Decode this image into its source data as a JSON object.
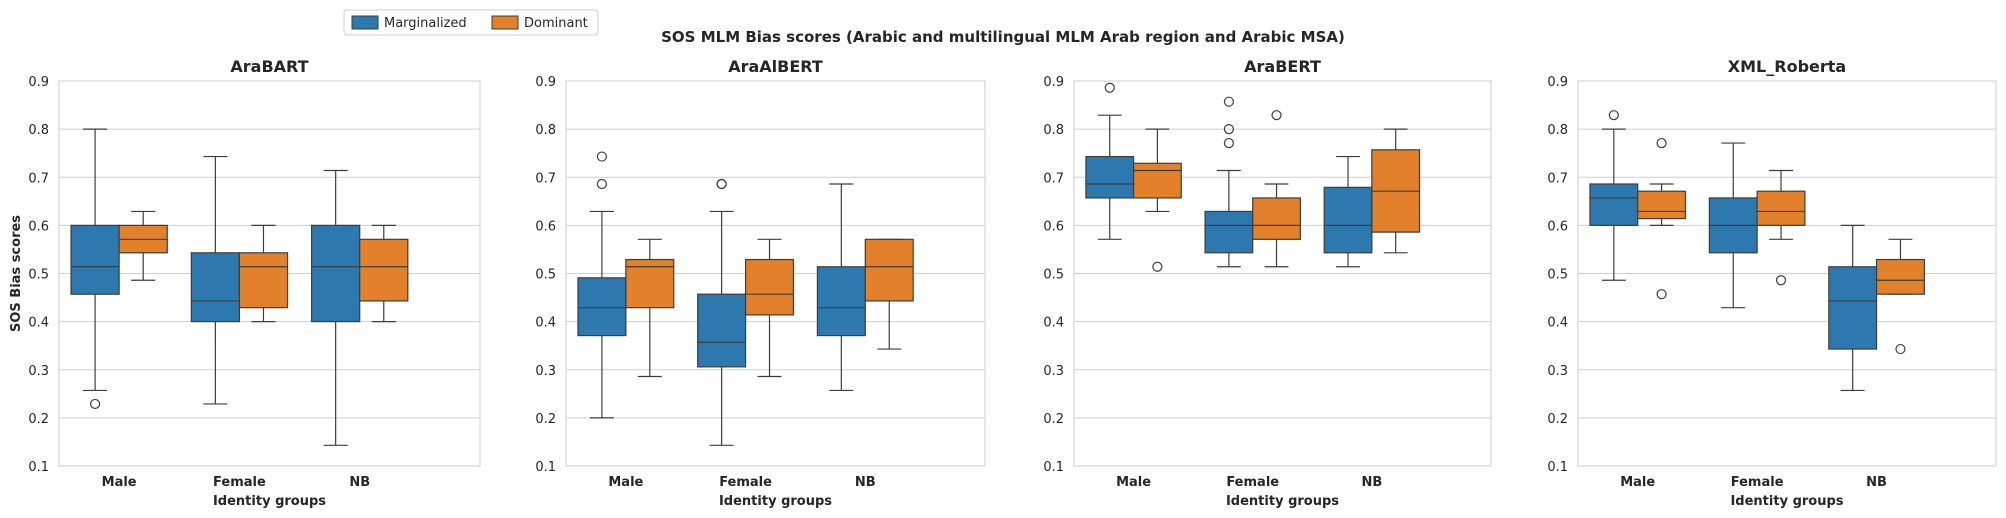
{
  "figure": {
    "suptitle": "SOS MLM Bias scores (Arabic and multilingual MLM Arab region and Arabic MSA)",
    "legend": {
      "placement": "top-left",
      "entries": [
        {
          "label": "Marginalized",
          "color": "#2e78b0"
        },
        {
          "label": "Dominant",
          "color": "#e2802b"
        }
      ]
    },
    "colors": {
      "grid": "#d0d0d0",
      "frame": "#cccccc",
      "line": "#3d3d3d"
    }
  },
  "chart_data": [
    {
      "type": "box",
      "title": "AraBART",
      "xlabel": "Identity groups",
      "ylabel": "SOS Bias scores",
      "ylim": [
        0.1,
        0.9
      ],
      "yticks": [
        "0.1",
        "0.2",
        "0.3",
        "0.4",
        "0.5",
        "0.6",
        "0.7",
        "0.8",
        "0.9"
      ],
      "categories": [
        "Male",
        "Female",
        "NB"
      ],
      "grid": "horizontal",
      "series": [
        {
          "name": "Marginalized",
          "boxes": [
            {
              "whislo": 0.257,
              "q1": 0.457,
              "med": 0.514,
              "q3": 0.6,
              "whishi": 0.8,
              "fliers": [
                0.229
              ]
            },
            {
              "whislo": 0.229,
              "q1": 0.4,
              "med": 0.443,
              "q3": 0.543,
              "whishi": 0.743,
              "fliers": []
            },
            {
              "whislo": 0.143,
              "q1": 0.4,
              "med": 0.514,
              "q3": 0.6,
              "whishi": 0.714,
              "fliers": []
            }
          ]
        },
        {
          "name": "Dominant",
          "boxes": [
            {
              "whislo": 0.486,
              "q1": 0.543,
              "med": 0.571,
              "q3": 0.6,
              "whishi": 0.629,
              "fliers": []
            },
            {
              "whislo": 0.4,
              "q1": 0.429,
              "med": 0.514,
              "q3": 0.543,
              "whishi": 0.6,
              "fliers": []
            },
            {
              "whislo": 0.4,
              "q1": 0.443,
              "med": 0.514,
              "q3": 0.571,
              "whishi": 0.6,
              "fliers": []
            }
          ]
        }
      ]
    },
    {
      "type": "box",
      "title": "AraAlBERT",
      "xlabel": "Identity groups",
      "ylabel": "",
      "ylim": [
        0.1,
        0.9
      ],
      "yticks": [
        "0.1",
        "0.2",
        "0.3",
        "0.4",
        "0.5",
        "0.6",
        "0.7",
        "0.8",
        "0.9"
      ],
      "categories": [
        "Male",
        "Female",
        "NB"
      ],
      "grid": "horizontal",
      "series": [
        {
          "name": "Marginalized",
          "boxes": [
            {
              "whislo": 0.2,
              "q1": 0.371,
              "med": 0.429,
              "q3": 0.491,
              "whishi": 0.629,
              "fliers": [
                0.686,
                0.743
              ]
            },
            {
              "whislo": 0.143,
              "q1": 0.306,
              "med": 0.357,
              "q3": 0.457,
              "whishi": 0.629,
              "fliers": [
                0.686,
                0.686
              ]
            },
            {
              "whislo": 0.257,
              "q1": 0.371,
              "med": 0.429,
              "q3": 0.514,
              "whishi": 0.686,
              "fliers": []
            }
          ]
        },
        {
          "name": "Dominant",
          "boxes": [
            {
              "whislo": 0.286,
              "q1": 0.429,
              "med": 0.514,
              "q3": 0.529,
              "whishi": 0.571,
              "fliers": []
            },
            {
              "whislo": 0.286,
              "q1": 0.414,
              "med": 0.457,
              "q3": 0.529,
              "whishi": 0.571,
              "fliers": []
            },
            {
              "whislo": 0.343,
              "q1": 0.443,
              "med": 0.514,
              "q3": 0.571,
              "whishi": 0.571,
              "fliers": []
            }
          ]
        }
      ]
    },
    {
      "type": "box",
      "title": "AraBERT",
      "xlabel": "Identity groups",
      "ylabel": "",
      "ylim": [
        0.1,
        0.9
      ],
      "yticks": [
        "0.1",
        "0.2",
        "0.3",
        "0.4",
        "0.5",
        "0.6",
        "0.7",
        "0.8",
        "0.9"
      ],
      "categories": [
        "Male",
        "Female",
        "NB"
      ],
      "grid": "horizontal",
      "series": [
        {
          "name": "Marginalized",
          "boxes": [
            {
              "whislo": 0.571,
              "q1": 0.657,
              "med": 0.686,
              "q3": 0.743,
              "whishi": 0.829,
              "fliers": [
                0.886
              ]
            },
            {
              "whislo": 0.514,
              "q1": 0.543,
              "med": 0.6,
              "q3": 0.629,
              "whishi": 0.714,
              "fliers": [
                0.771,
                0.8,
                0.857
              ]
            },
            {
              "whislo": 0.514,
              "q1": 0.543,
              "med": 0.6,
              "q3": 0.679,
              "whishi": 0.743,
              "fliers": []
            }
          ]
        },
        {
          "name": "Dominant",
          "boxes": [
            {
              "whislo": 0.629,
              "q1": 0.657,
              "med": 0.714,
              "q3": 0.729,
              "whishi": 0.8,
              "fliers": [
                0.514
              ]
            },
            {
              "whislo": 0.514,
              "q1": 0.571,
              "med": 0.6,
              "q3": 0.657,
              "whishi": 0.686,
              "fliers": [
                0.829
              ]
            },
            {
              "whislo": 0.543,
              "q1": 0.586,
              "med": 0.671,
              "q3": 0.757,
              "whishi": 0.8,
              "fliers": []
            }
          ]
        }
      ]
    },
    {
      "type": "box",
      "title": "XML_Roberta",
      "xlabel": "Identity groups",
      "ylabel": "",
      "ylim": [
        0.1,
        0.9
      ],
      "yticks": [
        "0.1",
        "0.2",
        "0.3",
        "0.4",
        "0.5",
        "0.6",
        "0.7",
        "0.8",
        "0.9"
      ],
      "categories": [
        "Male",
        "Female",
        "NB"
      ],
      "grid": "horizontal",
      "series": [
        {
          "name": "Marginalized",
          "boxes": [
            {
              "whislo": 0.486,
              "q1": 0.6,
              "med": 0.657,
              "q3": 0.686,
              "whishi": 0.8,
              "fliers": [
                0.829
              ]
            },
            {
              "whislo": 0.429,
              "q1": 0.543,
              "med": 0.6,
              "q3": 0.657,
              "whishi": 0.771,
              "fliers": []
            },
            {
              "whislo": 0.257,
              "q1": 0.343,
              "med": 0.443,
              "q3": 0.514,
              "whishi": 0.6,
              "fliers": []
            }
          ]
        },
        {
          "name": "Dominant",
          "boxes": [
            {
              "whislo": 0.6,
              "q1": 0.614,
              "med": 0.629,
              "q3": 0.671,
              "whishi": 0.686,
              "fliers": [
                0.457,
                0.771
              ]
            },
            {
              "whislo": 0.571,
              "q1": 0.6,
              "med": 0.629,
              "q3": 0.671,
              "whishi": 0.714,
              "fliers": [
                0.486
              ]
            },
            {
              "whislo": 0.457,
              "q1": 0.457,
              "med": 0.486,
              "q3": 0.529,
              "whishi": 0.571,
              "fliers": [
                0.343
              ]
            }
          ]
        }
      ]
    }
  ]
}
